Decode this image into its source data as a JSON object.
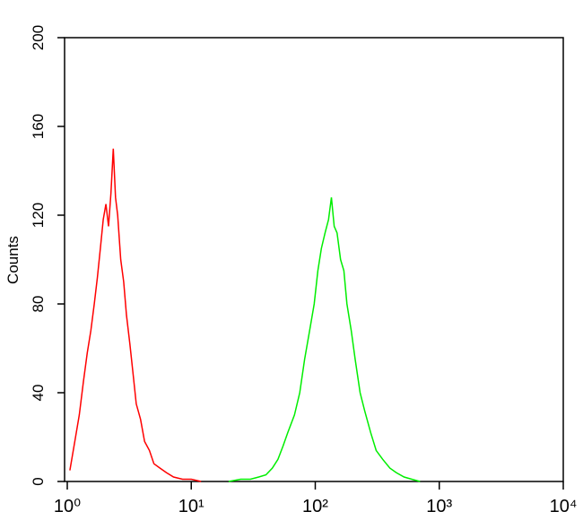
{
  "chart_data": {
    "type": "line",
    "y_label": "Counts",
    "log_x": true,
    "xlim": [
      1,
      10000
    ],
    "xticks": [
      {
        "value": 1,
        "label": "10⁰"
      },
      {
        "value": 10,
        "label": "10¹"
      },
      {
        "value": 100,
        "label": "10²"
      },
      {
        "value": 1000,
        "label": "10³"
      },
      {
        "value": 10000,
        "label": "10⁴"
      }
    ],
    "ylim": [
      0,
      200
    ],
    "yticks": [
      0,
      40,
      80,
      120,
      160,
      200
    ],
    "series": [
      {
        "color": "#ff0000",
        "x": [
          1.05,
          1.15,
          1.25,
          1.35,
          1.45,
          1.55,
          1.65,
          1.75,
          1.85,
          1.95,
          2.05,
          2.15,
          2.25,
          2.35,
          2.45,
          2.55,
          2.7,
          2.85,
          3.0,
          3.2,
          3.4,
          3.6,
          3.9,
          4.2,
          4.6,
          5.0,
          5.6,
          6.3,
          7.2,
          8.5,
          10,
          12
        ],
        "values": [
          5,
          18,
          30,
          45,
          58,
          68,
          80,
          92,
          105,
          118,
          125,
          115,
          130,
          150,
          128,
          120,
          100,
          90,
          75,
          62,
          48,
          35,
          28,
          18,
          14,
          8,
          6,
          4,
          2,
          1,
          1,
          0
        ]
      },
      {
        "color": "#00ee00",
        "x": [
          20,
          25,
          30,
          35,
          40,
          45,
          50,
          55,
          60,
          68,
          75,
          82,
          90,
          98,
          105,
          112,
          120,
          128,
          135,
          142,
          150,
          160,
          170,
          180,
          195,
          210,
          230,
          250,
          280,
          310,
          350,
          400,
          450,
          520,
          600,
          700
        ],
        "values": [
          0,
          1,
          1,
          2,
          3,
          6,
          10,
          16,
          22,
          30,
          40,
          55,
          68,
          80,
          95,
          105,
          112,
          118,
          128,
          115,
          112,
          100,
          95,
          80,
          68,
          55,
          40,
          32,
          22,
          14,
          10,
          6,
          4,
          2,
          1,
          0
        ]
      }
    ]
  }
}
